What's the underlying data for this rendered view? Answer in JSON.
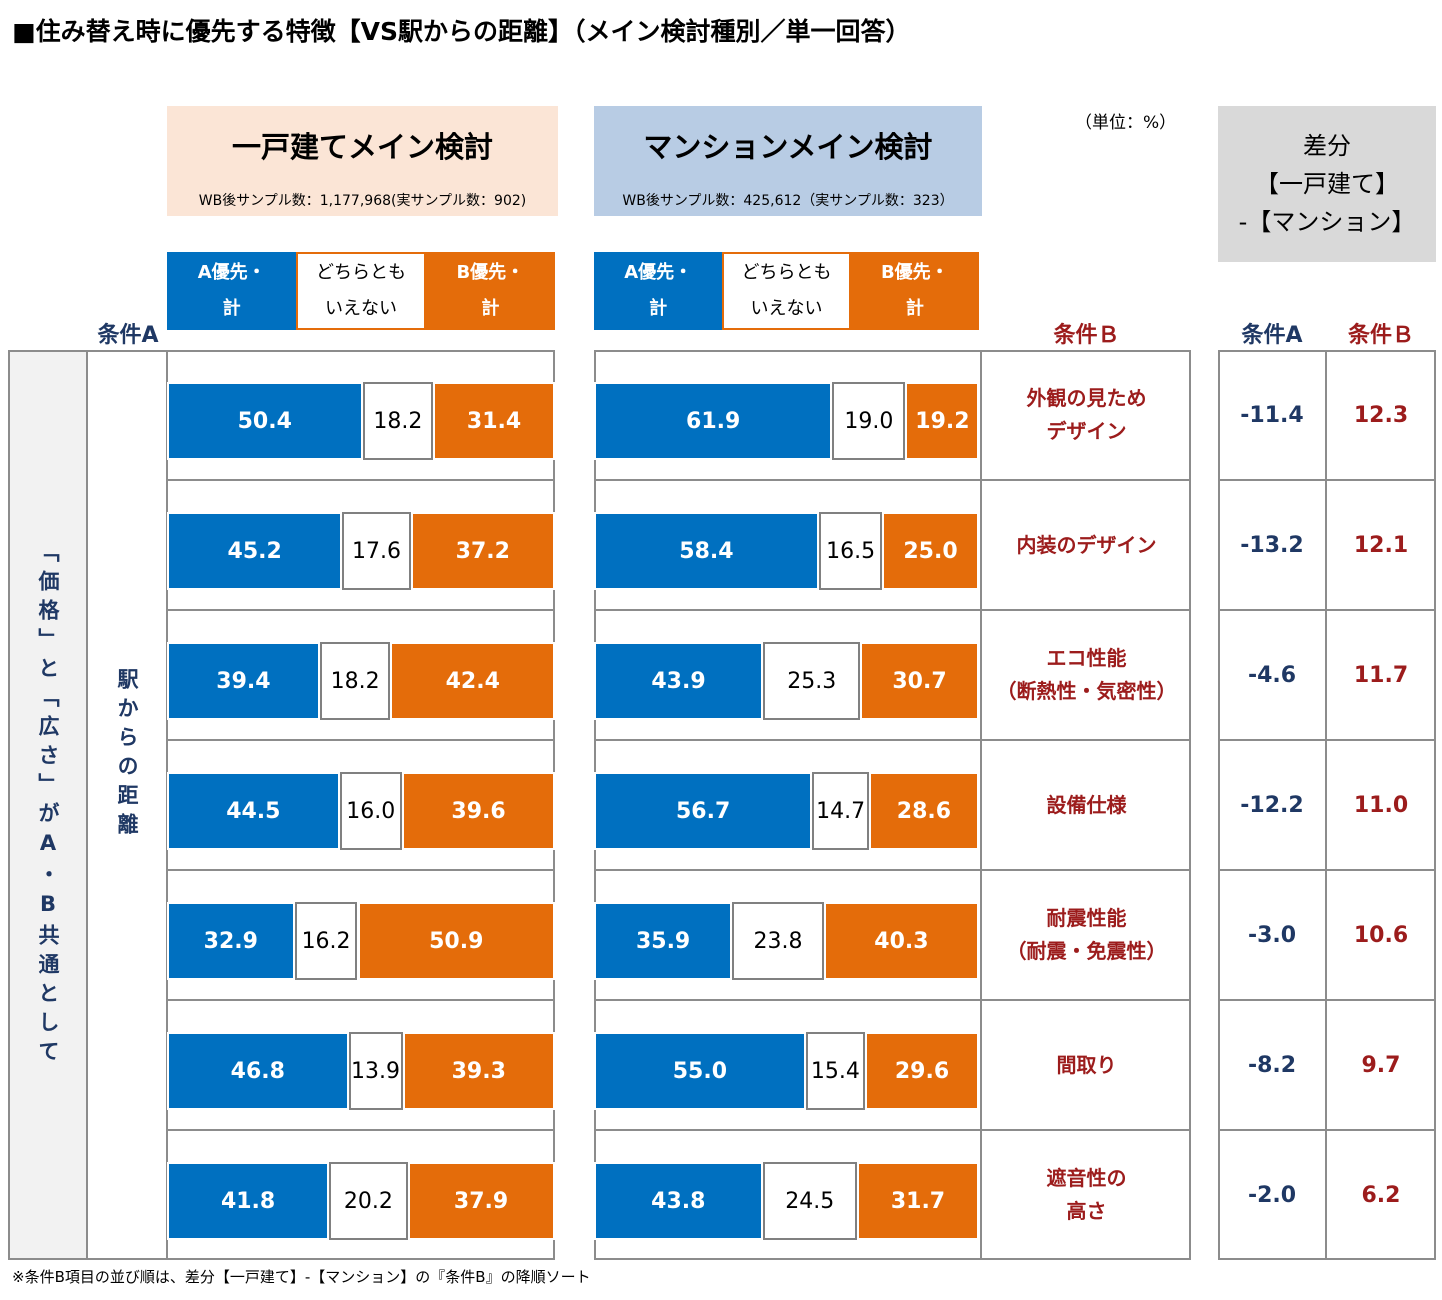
{
  "title": "■住み替え時に優先する特徴【VS駅からの距離】（メイン検討種別／単一回答）",
  "unit": "（単位：%）",
  "condition_a": "条件A",
  "condition_b": "条件Ｂ",
  "common_label": "「価格」と「広さ」がA・B共通として",
  "item_a": "駅からの距離",
  "footnote": "※条件B項目の並び順は、差分【一戸建て】-【マンション】の『条件B』の降順ソート",
  "chart_data": [
    {
      "type": "stacked_bar",
      "title": "一戸建てメイン検討",
      "subtitle": "WB後サンプル数：1,177,968(実サンプル数：902)",
      "xlim": [
        0,
        100
      ],
      "series": [
        {
          "name": "A優先・\n計",
          "color": "#0070c0",
          "values": [
            50.4,
            45.2,
            39.4,
            44.5,
            32.9,
            46.8,
            41.8
          ]
        },
        {
          "name": "どちらとも\nいえない",
          "color": "#ffffff",
          "values": [
            18.2,
            17.6,
            18.2,
            16.0,
            16.2,
            13.9,
            20.2
          ],
          "value_labels": [
            "18.2",
            "17.6",
            "18.2",
            "16.0",
            "16.2",
            "13.9",
            "20.2"
          ]
        },
        {
          "name": "B優先・\n計",
          "color": "#e46c0a",
          "values": [
            31.4,
            37.2,
            42.4,
            39.6,
            50.9,
            39.3,
            37.9
          ]
        }
      ]
    },
    {
      "type": "stacked_bar",
      "title": "マンションメイン検討",
      "subtitle": "WB後サンプル数：425,612（実サンプル数：323）",
      "xlim": [
        0,
        100
      ],
      "categories": [
        "外観の見ため\nデザイン",
        "内装のデザイン",
        "エコ性能\n（断熱性・気密性）",
        "設備仕様",
        "耐震性能\n（耐震・免震性）",
        "間取り",
        "遮音性の\n高さ"
      ],
      "series": [
        {
          "name": "A優先・\n計",
          "color": "#0070c0",
          "values": [
            61.9,
            58.4,
            43.9,
            56.7,
            35.9,
            55.0,
            43.8
          ],
          "value_labels": [
            "61.9",
            "58.4",
            "43.9",
            "56.7",
            "35.9",
            "55.0",
            "43.8"
          ]
        },
        {
          "name": "どちらとも\nいえない",
          "color": "#ffffff",
          "values": [
            19.0,
            16.5,
            25.3,
            14.7,
            23.8,
            15.4,
            24.5
          ],
          "value_labels": [
            "19.0",
            "16.5",
            "25.3",
            "14.7",
            "23.8",
            "15.4",
            "24.5"
          ]
        },
        {
          "name": "B優先・\n計",
          "color": "#e46c0a",
          "values": [
            19.2,
            25.0,
            30.7,
            28.6,
            40.3,
            29.6,
            31.7
          ],
          "value_labels": [
            "19.2",
            "25.0",
            "30.7",
            "28.6",
            "40.3",
            "29.6",
            "31.7"
          ]
        }
      ]
    }
  ],
  "diff": {
    "title": "差分\n【一戸建て】\n-【マンション】",
    "columns": [
      "条件A",
      "条件Ｂ"
    ],
    "rows": [
      [
        "-11.4",
        "12.3"
      ],
      [
        "-13.2",
        "12.1"
      ],
      [
        "-4.6",
        "11.7"
      ],
      [
        "-12.2",
        "11.0"
      ],
      [
        "-3.0",
        "10.6"
      ],
      [
        "-8.2",
        "9.7"
      ],
      [
        "-2.0",
        "6.2"
      ]
    ]
  }
}
